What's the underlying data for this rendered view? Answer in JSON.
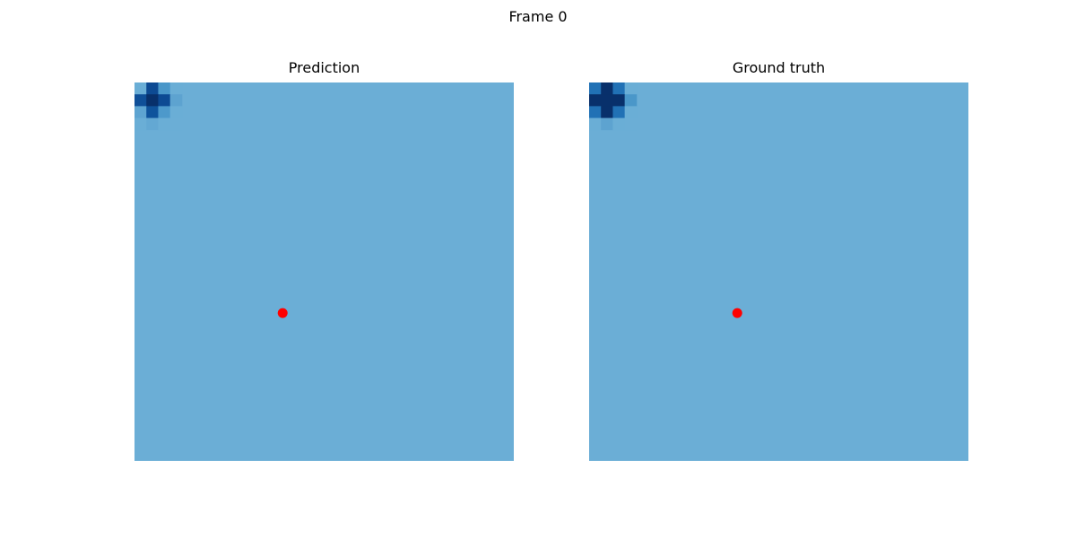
{
  "figure": {
    "suptitle": "Frame 0"
  },
  "chart_data": [
    {
      "type": "heatmap",
      "title": "Prediction",
      "colormap": "Blues",
      "grid_size": 32,
      "background_value": 0.5,
      "background_color": "#6baed6",
      "cells": [
        {
          "row": 0,
          "col": 0,
          "color": "#6aaed6"
        },
        {
          "row": 0,
          "col": 1,
          "color": "#0d4a93"
        },
        {
          "row": 0,
          "col": 2,
          "color": "#4a97c9"
        },
        {
          "row": 0,
          "col": 3,
          "color": "#6aaed6"
        },
        {
          "row": 1,
          "col": 0,
          "color": "#0f4f98"
        },
        {
          "row": 1,
          "col": 1,
          "color": "#08306b"
        },
        {
          "row": 1,
          "col": 2,
          "color": "#0d4a93"
        },
        {
          "row": 1,
          "col": 3,
          "color": "#5da3d0"
        },
        {
          "row": 2,
          "col": 0,
          "color": "#5ea4d1"
        },
        {
          "row": 2,
          "col": 1,
          "color": "#0f539c"
        },
        {
          "row": 2,
          "col": 2,
          "color": "#4d99cb"
        },
        {
          "row": 2,
          "col": 3,
          "color": "#6aaed6"
        },
        {
          "row": 3,
          "col": 0,
          "color": "#6aaed6"
        },
        {
          "row": 3,
          "col": 1,
          "color": "#63a8d3"
        },
        {
          "row": 3,
          "col": 2,
          "color": "#6aaed6"
        },
        {
          "row": 3,
          "col": 3,
          "color": "#6baed6"
        }
      ],
      "marker": {
        "row": 19.5,
        "col": 12.5,
        "color": "#ff0000"
      }
    },
    {
      "type": "heatmap",
      "title": "Ground truth",
      "colormap": "Blues",
      "grid_size": 32,
      "background_value": 0.5,
      "background_color": "#6baed6",
      "cells": [
        {
          "row": 0,
          "col": 0,
          "color": "#2171b5"
        },
        {
          "row": 0,
          "col": 1,
          "color": "#08306b"
        },
        {
          "row": 0,
          "col": 2,
          "color": "#2171b5"
        },
        {
          "row": 0,
          "col": 3,
          "color": "#6aaed6"
        },
        {
          "row": 1,
          "col": 0,
          "color": "#08306b"
        },
        {
          "row": 1,
          "col": 1,
          "color": "#08306b"
        },
        {
          "row": 1,
          "col": 2,
          "color": "#08306b"
        },
        {
          "row": 1,
          "col": 3,
          "color": "#4a97c9"
        },
        {
          "row": 2,
          "col": 0,
          "color": "#2171b5"
        },
        {
          "row": 2,
          "col": 1,
          "color": "#08306b"
        },
        {
          "row": 2,
          "col": 2,
          "color": "#2171b5"
        },
        {
          "row": 2,
          "col": 3,
          "color": "#6aaed6"
        },
        {
          "row": 3,
          "col": 0,
          "color": "#6aaed6"
        },
        {
          "row": 3,
          "col": 1,
          "color": "#5da3d0"
        },
        {
          "row": 3,
          "col": 2,
          "color": "#6aaed6"
        },
        {
          "row": 3,
          "col": 3,
          "color": "#6baed6"
        }
      ],
      "marker": {
        "row": 19.5,
        "col": 12.5,
        "color": "#ff0000"
      }
    }
  ]
}
